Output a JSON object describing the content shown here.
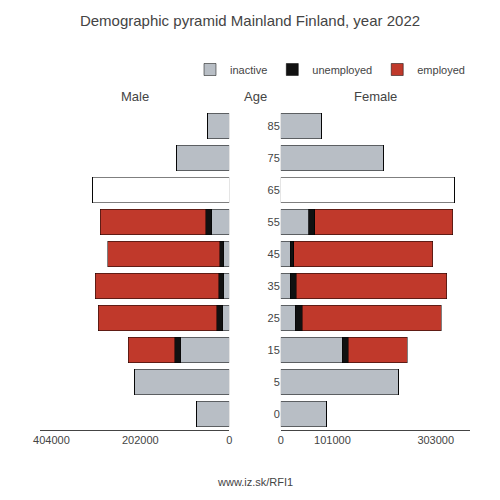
{
  "title": "Demographic pyramid Mainland Finland, year 2022",
  "annotations": [
    "www.iz.sk/RFI1"
  ],
  "chart_data": [
    {
      "type": "bar",
      "orientation": "horizontal",
      "stacked": true,
      "title": "Male",
      "tick_labels": "x",
      "grid": false,
      "categories": [
        85,
        75,
        65,
        55,
        45,
        35,
        25,
        15,
        5,
        0
      ],
      "series": [
        {
          "name": "inactive",
          "colors": [
            "#b8bec5",
            "#b8bec5",
            "#ffffff",
            "#b8bec5",
            "#b8bec5",
            "#b8bec5",
            "#b8bec5",
            "#b8bec5",
            "#b8bec5",
            "#b8bec5"
          ],
          "values": [
            50000,
            120000,
            310000,
            40000,
            12000,
            12000,
            15000,
            110000,
            215000,
            75000
          ]
        },
        {
          "name": "unemployed",
          "color": "#111111",
          "values": [
            0,
            0,
            0,
            13000,
            9000,
            12000,
            13000,
            14000,
            0,
            0
          ]
        },
        {
          "name": "employed",
          "color": "#c0392b",
          "values": [
            0,
            0,
            0,
            240000,
            255000,
            280000,
            270000,
            105000,
            0,
            0
          ]
        }
      ],
      "xlim": [
        430000,
        0
      ],
      "xticks": [
        404000,
        202000,
        0
      ]
    },
    {
      "type": "bar",
      "orientation": "horizontal",
      "stacked": true,
      "title": "Female",
      "ylabel": "Age",
      "legend": "upper right",
      "grid": false,
      "categories": [
        85,
        75,
        65,
        55,
        45,
        35,
        25,
        15,
        5,
        0
      ],
      "series": [
        {
          "name": "inactive",
          "colors": [
            "#b8bec5",
            "#b8bec5",
            "#ffffff",
            "#b8bec5",
            "#b8bec5",
            "#b8bec5",
            "#b8bec5",
            "#b8bec5",
            "#b8bec5",
            "#b8bec5"
          ],
          "values": [
            80000,
            200000,
            340000,
            55000,
            18000,
            18000,
            28000,
            120000,
            230000,
            90000
          ]
        },
        {
          "name": "unemployed",
          "color": "#111111",
          "values": [
            0,
            0,
            0,
            11000,
            7000,
            12000,
            14000,
            12000,
            0,
            0
          ]
        },
        {
          "name": "employed",
          "color": "#c0392b",
          "values": [
            0,
            0,
            0,
            270000,
            272000,
            295000,
            272000,
            115000,
            0,
            0
          ]
        }
      ],
      "xlim": [
        0,
        370000
      ],
      "xticks": [
        0,
        101000,
        303000
      ]
    }
  ]
}
